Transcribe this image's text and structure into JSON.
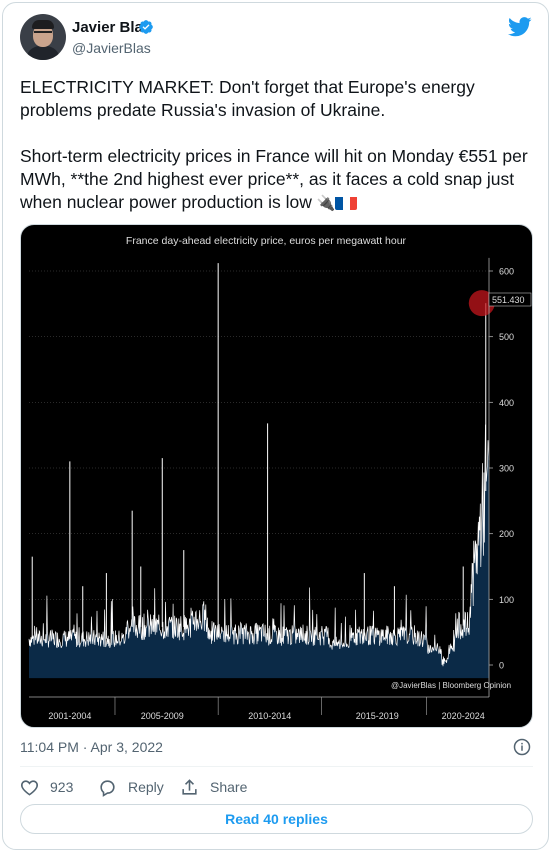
{
  "author": {
    "name": "Javier Blas",
    "handle": "@JavierBlas"
  },
  "tweet": {
    "paragraph1": "ELECTRICITY MARKET: Don't forget that Europe's energy problems predate Russia's invasion of Ukraine.",
    "paragraph2": "Short-term electricity prices in France will hit on Monday €551 per MWh, **the 2nd highest ever price**, as it faces a cold snap just when nuclear power production is low",
    "emoji_plug": "🔌",
    "flag_colors": [
      "#0055a4",
      "#ffffff",
      "#ef4135"
    ]
  },
  "chart_data": {
    "type": "area",
    "title": "France day-ahead electricity price, euros per megawatt hour",
    "x_labels": [
      "2001-2004",
      "2005-2009",
      "2010-2014",
      "2015-2019",
      "2020-2024"
    ],
    "y_ticks": [
      0,
      100,
      200,
      300,
      400,
      500,
      600
    ],
    "ylim": [
      -20,
      620
    ],
    "last_value": "551.430",
    "credit": "@JavierBlas | Bloomberg Opinion",
    "spikes": [
      {
        "year": 2001.15,
        "value": 165
      },
      {
        "year": 2002.9,
        "value": 310
      },
      {
        "year": 2003.5,
        "value": 120
      },
      {
        "year": 2004.6,
        "value": 140
      },
      {
        "year": 2005.8,
        "value": 235
      },
      {
        "year": 2006.2,
        "value": 150
      },
      {
        "year": 2007.2,
        "value": 315
      },
      {
        "year": 2008.2,
        "value": 175
      },
      {
        "year": 2009.8,
        "value": 612
      },
      {
        "year": 2012.1,
        "value": 368
      },
      {
        "year": 2016.6,
        "value": 140
      },
      {
        "year": 2018.0,
        "value": 120
      },
      {
        "year": 2021.2,
        "value": 150
      },
      {
        "year": 2022.25,
        "value": 551
      }
    ],
    "colors": {
      "background": "#000000",
      "area_fill": "#0b2a47",
      "line": "#ffffff",
      "highlight": "#c4161c",
      "grid": "#555555",
      "text": "#dddddd"
    }
  },
  "meta": {
    "timestamp": "11:04 PM · Apr 3, 2022"
  },
  "actions": {
    "like_count": "923",
    "reply_label": "Reply",
    "share_label": "Share",
    "read_replies_label": "Read 40 replies"
  }
}
